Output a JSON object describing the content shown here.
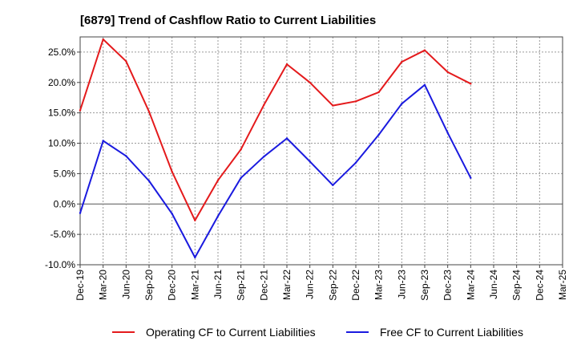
{
  "chart_data": {
    "type": "line",
    "title": "[6879]  Trend of Cashflow Ratio to Current Liabilities",
    "xlabel": "",
    "ylabel": "",
    "ylim": [
      -10,
      27.5
    ],
    "yticks": [
      -10,
      -5,
      0,
      5,
      10,
      15,
      20,
      25
    ],
    "y_tick_labels": [
      "-10.0%",
      "-5.0%",
      "0.0%",
      "5.0%",
      "10.0%",
      "15.0%",
      "20.0%",
      "25.0%"
    ],
    "categories": [
      "Dec-19",
      "Mar-20",
      "Jun-20",
      "Sep-20",
      "Dec-20",
      "Mar-21",
      "Jun-21",
      "Sep-21",
      "Dec-21",
      "Mar-22",
      "Jun-22",
      "Sep-22",
      "Dec-22",
      "Mar-23",
      "Jun-23",
      "Sep-23",
      "Dec-23",
      "Mar-24",
      "Jun-24",
      "Sep-24",
      "Dec-24",
      "Mar-25"
    ],
    "grid": true,
    "legend_position": "bottom",
    "series": [
      {
        "name": "Operating CF to Current Liabilities",
        "color": "#e41a1c",
        "values": [
          15.4,
          27.1,
          23.5,
          15.2,
          5.3,
          -2.7,
          3.9,
          9.0,
          16.3,
          23.0,
          20.0,
          16.2,
          16.9,
          18.4,
          23.4,
          25.3,
          21.7,
          19.8,
          null,
          null,
          null,
          null
        ]
      },
      {
        "name": "Free CF to Current Liabilities",
        "color": "#1a1adf",
        "values": [
          -1.5,
          10.4,
          7.9,
          3.8,
          -1.6,
          -8.8,
          -2.0,
          4.3,
          7.8,
          10.8,
          7.0,
          3.1,
          6.8,
          11.4,
          16.5,
          19.6,
          11.7,
          4.3,
          null,
          null,
          null,
          null
        ]
      }
    ]
  }
}
